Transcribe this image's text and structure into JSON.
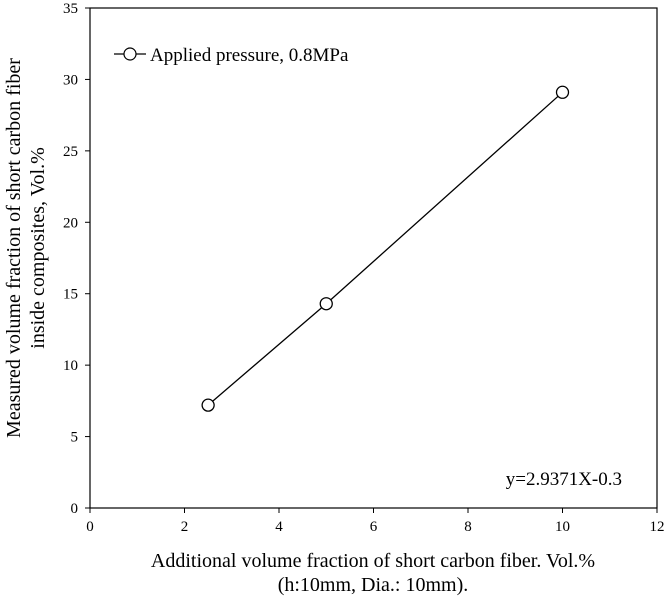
{
  "chart_data": {
    "type": "line",
    "x": [
      2.5,
      5,
      10
    ],
    "series": [
      {
        "name": "Applied pressure, 0.8MPa",
        "values": [
          7.2,
          14.3,
          29.1
        ],
        "marker": "open-circle",
        "color": "#000000"
      }
    ],
    "xlabel_lines": [
      "Additional volume fraction of short carbon fiber. Vol.%",
      "(h:10mm, Dia.: 10mm)."
    ],
    "ylabel_lines": [
      "Measured volume fraction of short carbon fiber",
      "inside composites, Vol.%"
    ],
    "xlim": [
      0,
      12
    ],
    "ylim": [
      0,
      35
    ],
    "xticks": [
      "0",
      "2",
      "4",
      "6",
      "8",
      "10",
      "12"
    ],
    "yticks": [
      "0",
      "5",
      "10",
      "15",
      "20",
      "25",
      "30",
      "35"
    ],
    "grid": false,
    "legend_position": "top-left",
    "annotations": [
      {
        "text": "y=2.9371X-0.3",
        "position": "bottom-right"
      }
    ]
  }
}
